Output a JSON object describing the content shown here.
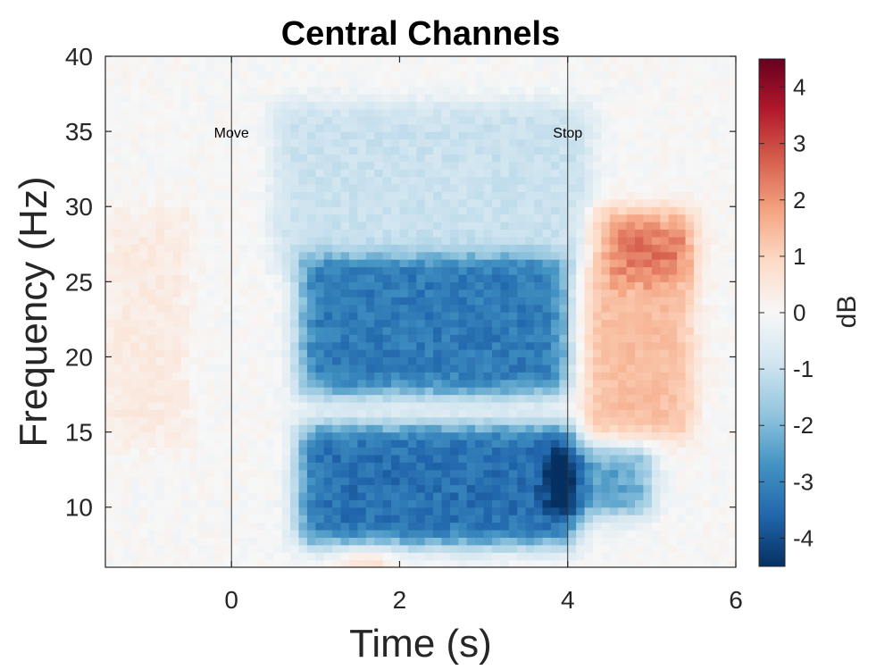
{
  "chart_data": {
    "type": "heatmap",
    "title": "Central Channels",
    "xlabel": "Time (s)",
    "ylabel": "Frequency (Hz)",
    "xlim": [
      -1.5,
      6
    ],
    "ylim": [
      6,
      40
    ],
    "xticks": [
      0,
      2,
      4,
      6
    ],
    "yticks": [
      10,
      15,
      20,
      25,
      30,
      35,
      40
    ],
    "colorbar": {
      "label": "dB",
      "range": [
        -4.5,
        4.5
      ],
      "ticks": [
        -4,
        -3,
        -2,
        -1,
        0,
        1,
        2,
        3,
        4
      ],
      "colormap": [
        "#053061",
        "#2166ac",
        "#4393c3",
        "#92c5de",
        "#d1e5f0",
        "#f7f7f7",
        "#fddbc7",
        "#f4a582",
        "#d6604d",
        "#b2182b",
        "#67001f"
      ]
    },
    "events": [
      {
        "time": 0,
        "label": "Move"
      },
      {
        "time": 4,
        "label": "Stop"
      }
    ],
    "regions": [
      {
        "t": [
          0.8,
          4.1
        ],
        "f": [
          7.5,
          15.5
        ],
        "db": -3.4
      },
      {
        "t": [
          0.8,
          4.0
        ],
        "f": [
          17.5,
          26.5
        ],
        "db": -3.2
      },
      {
        "t": [
          0.5,
          4.3
        ],
        "f": [
          26,
          37
        ],
        "db": -1.0
      },
      {
        "t": [
          3.8,
          5.0
        ],
        "f": [
          9.5,
          14.0
        ],
        "db": -2.4
      },
      {
        "t": [
          4.2,
          5.5
        ],
        "f": [
          14.5,
          30.0
        ],
        "db": 1.4
      },
      {
        "t": [
          4.5,
          5.5
        ],
        "f": [
          25,
          29
        ],
        "db": 1.0
      },
      {
        "t": [
          1.3,
          1.9
        ],
        "f": [
          6,
          7
        ],
        "db": 1.8
      },
      {
        "t": [
          -1.5,
          -0.5
        ],
        "f": [
          14,
          30
        ],
        "db": 0.4
      }
    ]
  }
}
